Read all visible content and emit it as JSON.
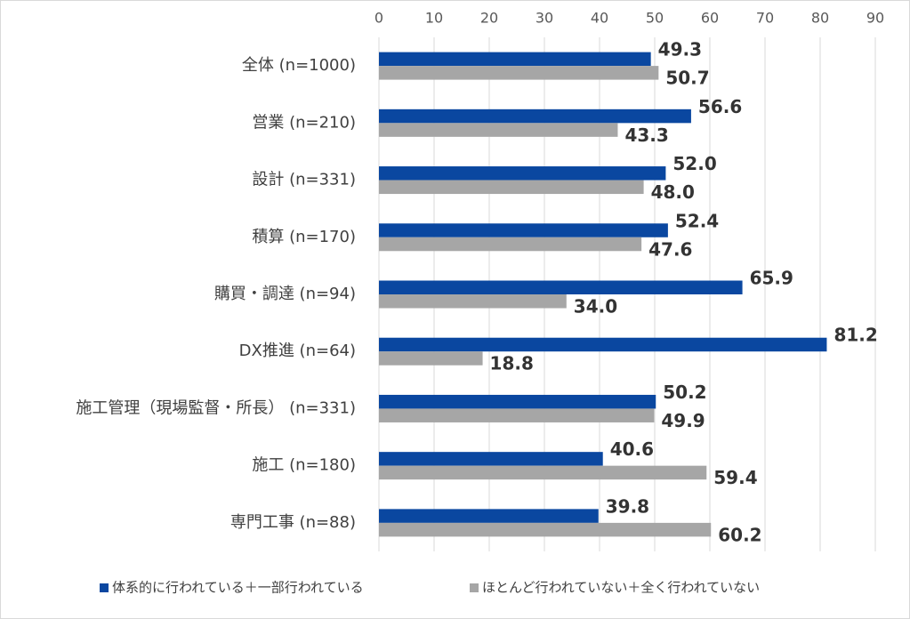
{
  "chart_data": {
    "type": "bar",
    "orientation": "horizontal",
    "categories": [
      "全体 (n=1000)",
      "営業 (n=210)",
      "設計 (n=331)",
      "積算 (n=170)",
      "購買・調達 (n=94)",
      "DX推進 (n=64)",
      "施工管理（現場監督・所長） (n=331)",
      "施工 (n=180)",
      "専門工事 (n=88)"
    ],
    "series": [
      {
        "name": "体系的に行われている＋一部行われている",
        "color": "#0a47a0",
        "values": [
          49.3,
          56.6,
          52.0,
          52.4,
          65.9,
          81.2,
          50.2,
          40.6,
          39.8
        ],
        "value_labels": [
          "49.3",
          "56.6",
          "52.0",
          "52.4",
          "65.9",
          "81.2",
          "50.2",
          "40.6",
          "39.8"
        ]
      },
      {
        "name": "ほとんど行われていない＋全く行われていない",
        "color": "#a6a6a6",
        "values": [
          50.7,
          43.3,
          48.0,
          47.6,
          34.0,
          18.8,
          49.9,
          59.4,
          60.2
        ],
        "value_labels": [
          "50.7",
          "43.3",
          "48.0",
          "47.6",
          "34.0",
          "18.8",
          "49.9",
          "59.4",
          "60.2"
        ]
      }
    ],
    "xlim": [
      0,
      90
    ],
    "xticks": [
      0,
      10,
      20,
      30,
      40,
      50,
      60,
      70,
      80,
      90
    ],
    "grid": true,
    "legend": "bottom"
  }
}
